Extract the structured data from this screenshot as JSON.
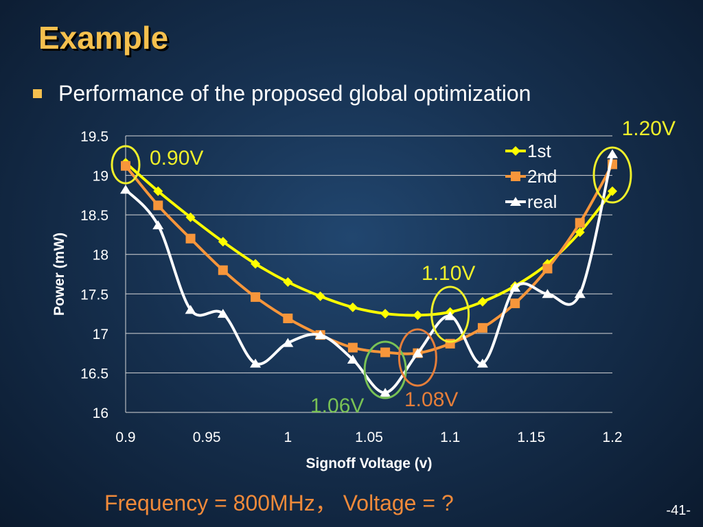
{
  "slide": {
    "title": "Example",
    "bullet": "Performance of the proposed global optimization",
    "footer": "Frequency = 800MHz，  Voltage = ?",
    "page_number": "-41-"
  },
  "colors": {
    "title": "#f5c04e",
    "first": "#ffff00",
    "second": "#f7963b",
    "real": "#ffffff",
    "callout_yellow": "#f0f02a",
    "callout_orange": "#e57e3a",
    "callout_green": "#79c255",
    "footer": "#f08a3a"
  },
  "chart_data": {
    "type": "line",
    "xlabel": "Signoff Voltage (v)",
    "ylabel": "Power (mW)",
    "xlim": [
      0.9,
      1.2
    ],
    "ylim": [
      16,
      19.5
    ],
    "xticks": [
      "0.9",
      "0.95",
      "1",
      "1.05",
      "1.1",
      "1.15",
      "1.2"
    ],
    "yticks": [
      "16",
      "16.5",
      "17",
      "17.5",
      "18",
      "18.5",
      "19",
      "19.5"
    ],
    "grid": "horizontal",
    "legend_position": "top-right",
    "x": [
      0.9,
      0.92,
      0.94,
      0.96,
      0.98,
      1.0,
      1.02,
      1.04,
      1.06,
      1.08,
      1.1,
      1.12,
      1.14,
      1.16,
      1.18,
      1.2
    ],
    "series": [
      {
        "name": "1st",
        "marker": "diamond",
        "color_key": "first",
        "values": [
          19.16,
          18.8,
          18.47,
          18.16,
          17.88,
          17.65,
          17.47,
          17.33,
          17.25,
          17.23,
          17.27,
          17.4,
          17.6,
          17.88,
          18.28,
          18.8
        ]
      },
      {
        "name": "2nd",
        "marker": "square",
        "color_key": "second",
        "values": [
          19.12,
          18.62,
          18.2,
          17.8,
          17.46,
          17.19,
          16.98,
          16.82,
          16.76,
          16.75,
          16.87,
          17.07,
          17.38,
          17.82,
          18.4,
          19.14
        ]
      },
      {
        "name": "real",
        "marker": "triangle",
        "color_key": "real",
        "values": [
          18.82,
          18.37,
          17.3,
          17.25,
          16.62,
          16.88,
          16.98,
          16.67,
          16.25,
          16.75,
          17.22,
          16.62,
          17.58,
          17.5,
          17.5,
          19.27
        ]
      }
    ],
    "annotations": [
      {
        "label": "0.90V",
        "x": 0.9,
        "color_key": "callout_yellow"
      },
      {
        "label": "1.20V",
        "x": 1.2,
        "color_key": "callout_yellow"
      },
      {
        "label": "1.10V",
        "x": 1.1,
        "color_key": "callout_yellow"
      },
      {
        "label": "1.06V",
        "x": 1.06,
        "color_key": "callout_green"
      },
      {
        "label": "1.08V",
        "x": 1.08,
        "color_key": "callout_orange"
      }
    ]
  }
}
